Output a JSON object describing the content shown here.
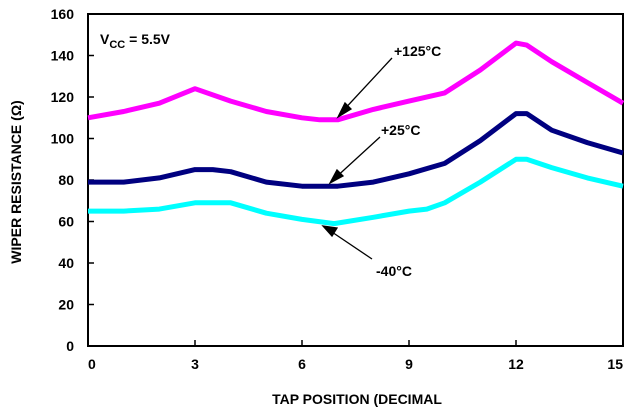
{
  "chart_data": {
    "type": "line",
    "title": "",
    "xlabel": "TAP POSITION (DECIMAL",
    "ylabel": "WIPER RESISTANCE (Ω)",
    "xlim": [
      0,
      15
    ],
    "ylim": [
      0,
      160
    ],
    "xticks": [
      0,
      3,
      6,
      9,
      12,
      15
    ],
    "yticks": [
      0,
      20,
      40,
      60,
      80,
      100,
      120,
      140,
      160
    ],
    "grid": false,
    "annotation": {
      "main": "V",
      "sub": "CC",
      "rest": " = 5.5V"
    },
    "series": [
      {
        "name": "+125°C",
        "color": "#ff00ff",
        "x": [
          0,
          1,
          2,
          3,
          4,
          5,
          6,
          6.5,
          7,
          8,
          9,
          10,
          11,
          12,
          12.3,
          13,
          14,
          15
        ],
        "y": [
          110,
          113,
          117,
          124,
          118,
          113,
          110,
          109,
          109,
          114,
          118,
          122,
          133,
          146,
          145,
          137,
          127,
          117
        ]
      },
      {
        "name": "+25°C",
        "color": "#000080",
        "x": [
          0,
          1,
          2,
          3,
          3.5,
          4,
          5,
          6,
          6.5,
          7,
          8,
          9,
          10,
          11,
          12,
          12.3,
          13,
          14,
          15
        ],
        "y": [
          79,
          79,
          81,
          85,
          85,
          84,
          79,
          77,
          77,
          77,
          79,
          83,
          88,
          99,
          112,
          112,
          104,
          98,
          93
        ]
      },
      {
        "name": "-40°C",
        "color": "#00ffff",
        "x": [
          0,
          1,
          2,
          3,
          4,
          5,
          6,
          6.9,
          8,
          9,
          9.5,
          10,
          11,
          12,
          12.3,
          13,
          14,
          15
        ],
        "y": [
          65,
          65,
          66,
          69,
          69,
          64,
          61,
          59,
          62,
          65,
          66,
          69,
          79,
          90,
          90,
          86,
          81,
          77
        ]
      }
    ]
  }
}
